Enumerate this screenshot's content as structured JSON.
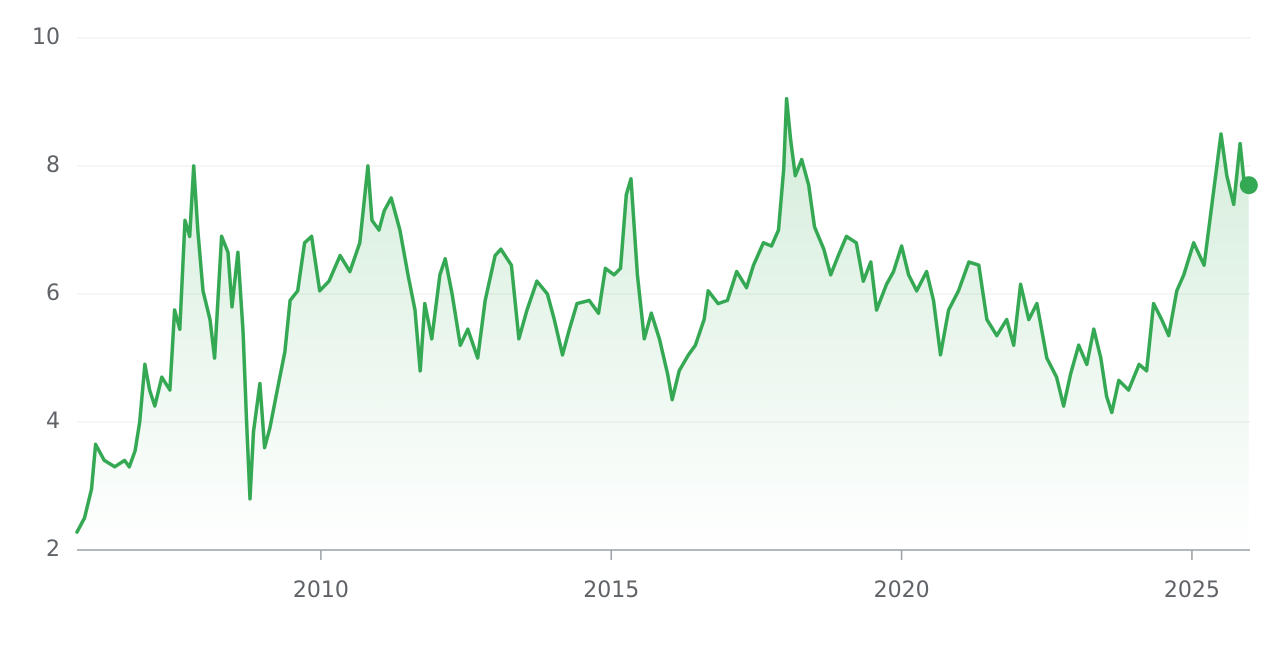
{
  "chart_data": {
    "type": "line",
    "color": "#34a853",
    "grid": true,
    "xlim": [
      2005.8,
      2026
    ],
    "xticks": [
      2010,
      2015,
      2020,
      2025
    ],
    "ylim": [
      2,
      10
    ],
    "yticks": [
      2,
      4,
      6,
      8,
      10
    ],
    "x": [
      2005.8,
      2005.93,
      2006.05,
      2006.12,
      2006.27,
      2006.45,
      2006.62,
      2006.7,
      2006.8,
      2006.88,
      2006.97,
      2007.05,
      2007.14,
      2007.26,
      2007.4,
      2007.48,
      2007.57,
      2007.66,
      2007.74,
      2007.81,
      2007.88,
      2007.97,
      2008.09,
      2008.17,
      2008.29,
      2008.4,
      2008.47,
      2008.57,
      2008.66,
      2008.72,
      2008.78,
      2008.84,
      2008.95,
      2009.03,
      2009.12,
      2009.26,
      2009.38,
      2009.47,
      2009.6,
      2009.72,
      2009.84,
      2009.98,
      2010.14,
      2010.33,
      2010.5,
      2010.67,
      2010.81,
      2010.88,
      2011.0,
      2011.09,
      2011.21,
      2011.36,
      2011.5,
      2011.62,
      2011.71,
      2011.79,
      2011.91,
      2012.05,
      2012.14,
      2012.26,
      2012.4,
      2012.53,
      2012.7,
      2012.83,
      2013.0,
      2013.1,
      2013.28,
      2013.41,
      2013.55,
      2013.72,
      2013.9,
      2014.02,
      2014.16,
      2014.28,
      2014.41,
      2014.62,
      2014.78,
      2014.9,
      2015.05,
      2015.16,
      2015.26,
      2015.34,
      2015.45,
      2015.57,
      2015.69,
      2015.83,
      2015.97,
      2016.05,
      2016.17,
      2016.33,
      2016.45,
      2016.6,
      2016.67,
      2016.84,
      2017.0,
      2017.16,
      2017.33,
      2017.45,
      2017.62,
      2017.76,
      2017.88,
      2017.97,
      2018.02,
      2018.09,
      2018.17,
      2018.28,
      2018.4,
      2018.5,
      2018.66,
      2018.78,
      2018.91,
      2019.05,
      2019.22,
      2019.34,
      2019.47,
      2019.57,
      2019.74,
      2019.86,
      2020.0,
      2020.12,
      2020.26,
      2020.43,
      2020.55,
      2020.67,
      2020.81,
      2020.98,
      2021.16,
      2021.33,
      2021.47,
      2021.64,
      2021.81,
      2021.93,
      2022.05,
      2022.19,
      2022.33,
      2022.5,
      2022.67,
      2022.79,
      2022.91,
      2023.05,
      2023.19,
      2023.31,
      2023.43,
      2023.53,
      2023.62,
      2023.74,
      2023.91,
      2024.09,
      2024.22,
      2024.34,
      2024.48,
      2024.6,
      2024.74,
      2024.86,
      2025.03,
      2025.21,
      2025.33,
      2025.5,
      2025.6,
      2025.72,
      2025.83,
      2025.91,
      2025.98
    ],
    "values": [
      2.28,
      2.5,
      2.95,
      3.65,
      3.4,
      3.3,
      3.4,
      3.3,
      3.55,
      4.0,
      4.9,
      4.5,
      4.25,
      4.7,
      4.5,
      5.75,
      5.45,
      7.15,
      6.9,
      8.0,
      7.0,
      6.05,
      5.6,
      5.0,
      6.9,
      6.65,
      5.8,
      6.65,
      5.4,
      4.0,
      2.8,
      3.85,
      4.6,
      3.6,
      3.9,
      4.55,
      5.1,
      5.9,
      6.05,
      6.8,
      6.9,
      6.05,
      6.2,
      6.6,
      6.35,
      6.8,
      8.0,
      7.15,
      7.0,
      7.3,
      7.5,
      7.0,
      6.3,
      5.75,
      4.8,
      5.85,
      5.3,
      6.3,
      6.55,
      6.0,
      5.2,
      5.45,
      5.0,
      5.9,
      6.6,
      6.7,
      6.45,
      5.3,
      5.75,
      6.2,
      6.0,
      5.6,
      5.05,
      5.45,
      5.85,
      5.9,
      5.7,
      6.4,
      6.3,
      6.4,
      7.55,
      7.8,
      6.3,
      5.3,
      5.7,
      5.3,
      4.75,
      4.35,
      4.8,
      5.05,
      5.2,
      5.6,
      6.05,
      5.85,
      5.9,
      6.35,
      6.1,
      6.45,
      6.8,
      6.75,
      7.0,
      7.95,
      9.05,
      8.4,
      7.85,
      8.1,
      7.7,
      7.05,
      6.7,
      6.3,
      6.6,
      6.9,
      6.8,
      6.2,
      6.5,
      5.75,
      6.15,
      6.35,
      6.75,
      6.3,
      6.05,
      6.35,
      5.9,
      5.05,
      5.75,
      6.05,
      6.5,
      6.45,
      5.6,
      5.35,
      5.6,
      5.2,
      6.15,
      5.6,
      5.85,
      5.0,
      4.7,
      4.25,
      4.75,
      5.2,
      4.9,
      5.45,
      5.0,
      4.4,
      4.15,
      4.65,
      4.5,
      4.9,
      4.8,
      5.85,
      5.6,
      5.35,
      6.05,
      6.3,
      6.8,
      6.45,
      7.3,
      8.5,
      7.85,
      7.4,
      8.35,
      7.65,
      7.7
    ]
  }
}
